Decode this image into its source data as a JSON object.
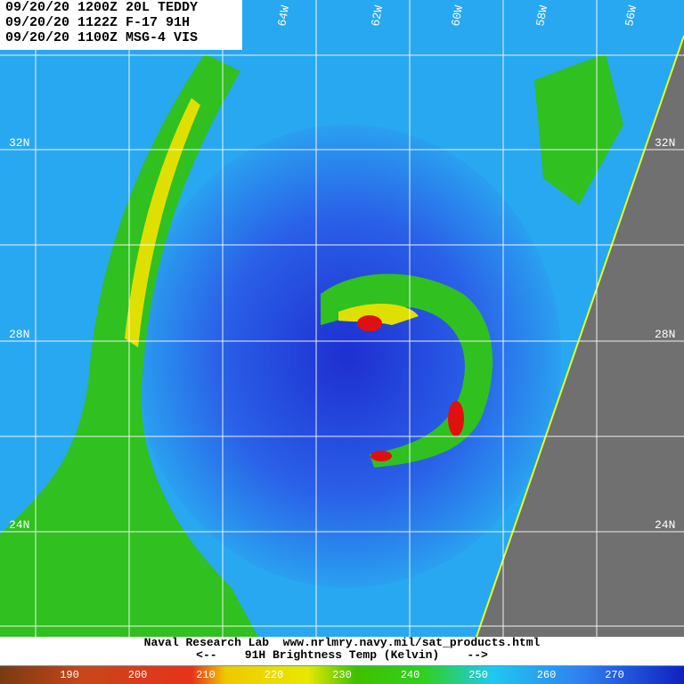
{
  "header": {
    "lines": [
      "09/20/20 1200Z 20L TEDDY",
      "09/20/20 1122Z F-17 91H",
      "09/20/20 1100Z MSG-4 VIS"
    ]
  },
  "grid_labels": {
    "longitude": [
      "64W",
      "62W",
      "60W",
      "58W",
      "56W"
    ],
    "latitude": [
      "32N",
      "28N",
      "24N"
    ]
  },
  "footer": {
    "credit": "Naval Research Lab  www.nrlmry.navy.mil/sat_products.html",
    "legend_title": "<--    91H Brightness Temp (Kelvin)    -->"
  },
  "colorbar": {
    "ticks": [
      190,
      200,
      210,
      220,
      230,
      240,
      250,
      260,
      270
    ]
  }
}
